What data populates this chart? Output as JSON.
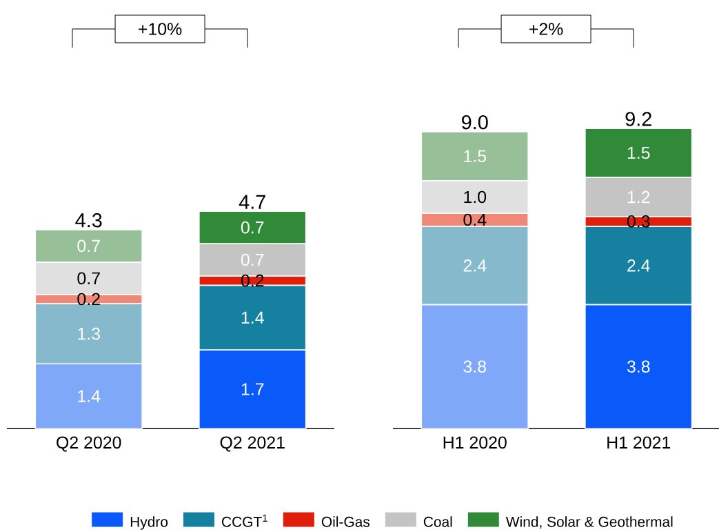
{
  "chart_data": [
    {
      "type": "bar",
      "stacked": true,
      "categories": [
        "Q2 2020",
        "Q2 2021"
      ],
      "series": [
        {
          "colors": [
            "#80a8f8",
            "#0a5afa"
          ],
          "values": [
            1.4,
            1.7
          ],
          "value_labels": [
            "1.4",
            "1.7"
          ]
        },
        {
          "colors": [
            "#86b9cc",
            "#1580a0"
          ],
          "values": [
            1.3,
            1.4
          ],
          "value_labels": [
            "1.3",
            "1.4"
          ]
        },
        {
          "colors": [
            "#f08878",
            "#e01e0a"
          ],
          "values": [
            0.2,
            0.2
          ],
          "value_labels": [
            "0.2",
            "0.2"
          ]
        },
        {
          "colors": [
            "#e0e0e0",
            "#c4c4c4"
          ],
          "values": [
            0.7,
            0.7
          ],
          "value_labels": [
            "0.7",
            "0.7"
          ]
        },
        {
          "colors": [
            "#98c098",
            "#318a38"
          ],
          "values": [
            0.7,
            0.7
          ],
          "value_labels": [
            "0.7",
            "0.7"
          ]
        }
      ],
      "totals": [
        "4.3",
        "4.7"
      ],
      "annotations": [
        "+10%"
      ]
    },
    {
      "type": "bar",
      "stacked": true,
      "legend": "bottom",
      "categories": [
        "H1 2020",
        "H1 2021"
      ],
      "series": [
        {
          "name": "Hydro",
          "color": "#0a5afa",
          "colors": [
            "#80a8f8",
            "#0a5afa"
          ],
          "values": [
            3.8,
            3.8
          ],
          "value_labels": [
            "3.8",
            "3.8"
          ]
        },
        {
          "name": "CCGT$^{1}$",
          "color": "#1580a0",
          "colors": [
            "#86b9cc",
            "#1580a0"
          ],
          "values": [
            2.4,
            2.4
          ],
          "value_labels": [
            "2.4",
            "2.4"
          ]
        },
        {
          "name": "Oil-Gas",
          "color": "#e01e0a",
          "colors": [
            "#f08878",
            "#e01e0a"
          ],
          "values": [
            0.4,
            0.3
          ],
          "value_labels": [
            "0.4",
            "0.3"
          ]
        },
        {
          "name": "Coal",
          "color": "#c4c4c4",
          "colors": [
            "#e0e0e0",
            "#c4c4c4"
          ],
          "values": [
            1.0,
            1.2
          ],
          "value_labels": [
            "1.0",
            "1.2"
          ]
        },
        {
          "name": "Wind, Solar & Geothermal",
          "color": "#318a38",
          "colors": [
            "#98c098",
            "#318a38"
          ],
          "values": [
            1.5,
            1.5
          ],
          "value_labels": [
            "1.5",
            "1.5"
          ]
        }
      ],
      "totals": [
        "9.0",
        "9.2"
      ],
      "annotations": [
        "+2%"
      ]
    }
  ]
}
